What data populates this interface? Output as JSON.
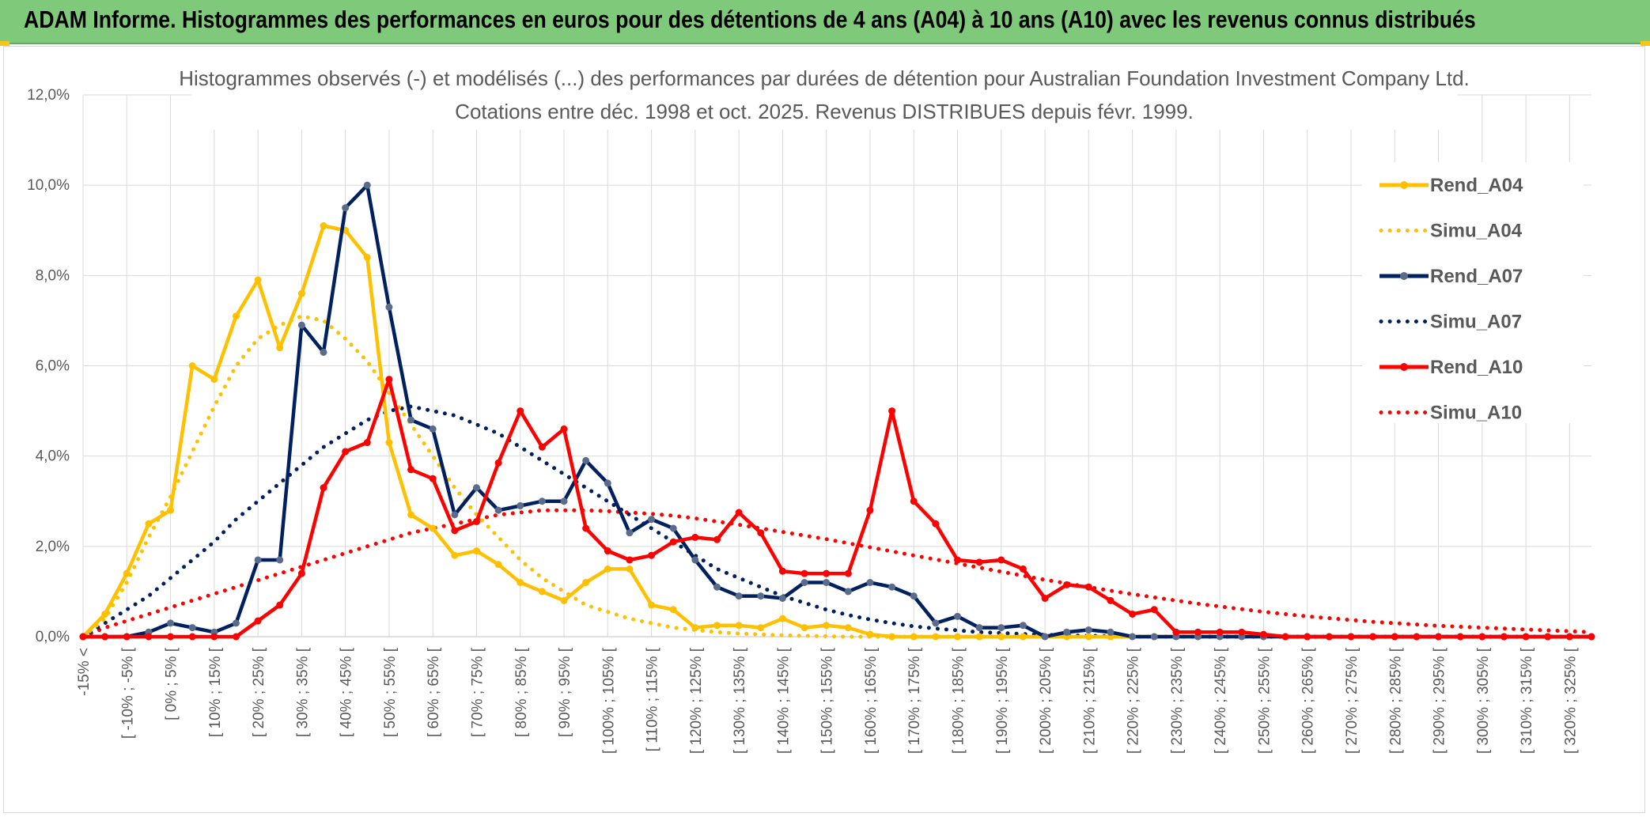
{
  "banner": {
    "title": "ADAM Informe. Histogrammes des performances en euros pour des détentions de 4 ans (A04) à 10 ans (A10) avec les revenus connus distribués"
  },
  "colors": {
    "banner_bg": "#7fc97a",
    "A04": "#ffc000",
    "A07": "#002060",
    "A10": "#ff0000",
    "A07_marker": "#5b6b8c",
    "grid": "#d9d9d9",
    "text": "#595959"
  },
  "chart_data": {
    "type": "line",
    "title_line1": "Histogrammes observés (-) et modélisés (...) des performances par durées de détention pour Australian Foundation Investment Company Ltd.",
    "title_line2": "Cotations entre déc. 1998 et oct. 2025. Revenus DISTRIBUES depuis févr. 1999.",
    "ylim": [
      0,
      0.12
    ],
    "yticks": [
      "0,0%",
      "2,0%",
      "4,0%",
      "6,0%",
      "8,0%",
      "10,0%",
      "12,0%"
    ],
    "grid": true,
    "legend_position": "right",
    "legend": [
      "Rend_A04",
      "Simu_A04",
      "Rend_A07",
      "Simu_A07",
      "Rend_A10",
      "Simu_A10"
    ],
    "x_labels": [
      "-15% <",
      "[ -10% ; -5% [",
      "[ 0% ; 5% [",
      "[ 10% ; 15% [",
      "[ 20% ; 25% [",
      "[ 30% ; 35% [",
      "[ 40% ; 45% [",
      "[ 50% ; 55% [",
      "[ 60% ; 65% [",
      "[ 70% ; 75% [",
      "[ 80% ; 85% [",
      "[ 90% ; 95% [",
      "[ 100% ; 105% [",
      "[ 110% ; 115% [",
      "[ 120% ; 125% [",
      "[ 130% ; 135% [",
      "[ 140% ; 145% [",
      "[ 150% ; 155% [",
      "[ 160% ; 165% [",
      "[ 170% ; 175% [",
      "[ 180% ; 185% [",
      "[ 190% ; 195% [",
      "[ 200% ; 205% [",
      "[ 210% ; 215% [",
      "[ 220% ; 225% [",
      "[ 230% ; 235% [",
      "[ 240% ; 245% [",
      "[ 250% ; 255% [",
      "[ 260% ; 265% [",
      "[ 270% ; 275% [",
      "[ 280% ; 285% [",
      "[ 290% ; 295% [",
      "[ 300% ; 305% [",
      "[ 310% ; 315% [",
      "[ 320% ; 325% ["
    ],
    "series": [
      {
        "name": "Rend_A04",
        "style": "solid",
        "color": "#ffc000",
        "values": [
          0.0,
          0.005,
          0.014,
          0.025,
          0.028,
          0.06,
          0.057,
          0.071,
          0.079,
          0.064,
          0.076,
          0.091,
          0.09,
          0.084,
          0.043,
          0.027,
          0.024,
          0.018,
          0.019,
          0.016,
          0.012,
          0.01,
          0.008,
          0.012,
          0.015,
          0.015,
          0.007,
          0.006,
          0.002,
          0.0025,
          0.0025,
          0.002,
          0.004,
          0.002,
          0.0025,
          0.002,
          0.0005,
          0.0,
          0.0,
          0.0,
          0.0,
          0.0,
          0.0,
          0.0,
          0.0,
          0.0,
          0.0,
          0.0,
          0.0,
          0.0,
          0.0,
          0.0
        ]
      },
      {
        "name": "Simu_A04",
        "style": "dotted",
        "color": "#ffc000",
        "values": [
          0.0,
          0.004,
          0.012,
          0.022,
          0.031,
          0.041,
          0.051,
          0.06,
          0.066,
          0.069,
          0.071,
          0.07,
          0.066,
          0.061,
          0.054,
          0.047,
          0.04,
          0.033,
          0.027,
          0.022,
          0.017,
          0.013,
          0.01,
          0.007,
          0.0055,
          0.004,
          0.003,
          0.002,
          0.0015,
          0.001,
          0.0007,
          0.0005,
          0.0003,
          0.0002,
          0.0001,
          0.0,
          0.0,
          0.0,
          0.0,
          0.0,
          0.0,
          0.0,
          0.0,
          0.0,
          0.0,
          0.0,
          0.0,
          0.0,
          0.0,
          0.0,
          0.0,
          0.0,
          0.0,
          0.0,
          0.0,
          0.0,
          0.0,
          0.0,
          0.0,
          0.0,
          0.0
        ]
      },
      {
        "name": "Rend_A07",
        "style": "solid",
        "color": "#002060",
        "values": [
          0.0,
          0.0,
          0.0,
          0.001,
          0.003,
          0.002,
          0.001,
          0.003,
          0.017,
          0.017,
          0.069,
          0.063,
          0.095,
          0.1,
          0.073,
          0.048,
          0.046,
          0.027,
          0.033,
          0.028,
          0.029,
          0.03,
          0.03,
          0.039,
          0.034,
          0.023,
          0.026,
          0.024,
          0.017,
          0.011,
          0.009,
          0.009,
          0.0085,
          0.012,
          0.012,
          0.01,
          0.012,
          0.011,
          0.009,
          0.003,
          0.0045,
          0.002,
          0.002,
          0.0025,
          0.0,
          0.001,
          0.0015,
          0.001,
          0.0,
          0.0,
          0.0,
          0.0,
          0.0,
          0.0,
          0.0,
          0.0,
          0.0,
          0.0,
          0.0,
          0.0,
          0.0,
          0.0,
          0.0,
          0.0,
          0.0,
          0.0,
          0.0,
          0.0,
          0.0,
          0.0
        ]
      },
      {
        "name": "Simu_A07",
        "style": "dotted",
        "color": "#002060",
        "values": [
          0.0,
          0.003,
          0.006,
          0.009,
          0.013,
          0.017,
          0.021,
          0.026,
          0.03,
          0.034,
          0.038,
          0.042,
          0.045,
          0.048,
          0.05,
          0.051,
          0.05,
          0.049,
          0.047,
          0.045,
          0.042,
          0.039,
          0.036,
          0.033,
          0.03,
          0.027,
          0.024,
          0.021,
          0.018,
          0.015,
          0.013,
          0.011,
          0.009,
          0.0075,
          0.006,
          0.0048,
          0.0038,
          0.003,
          0.0023,
          0.0018,
          0.0014,
          0.001,
          0.0008,
          0.0006,
          0.0004,
          0.0003,
          0.0002,
          0.0001,
          0.0,
          0.0,
          0.0,
          0.0,
          0.0,
          0.0,
          0.0,
          0.0,
          0.0,
          0.0,
          0.0,
          0.0,
          0.0,
          0.0,
          0.0,
          0.0,
          0.0,
          0.0,
          0.0,
          0.0,
          0.0,
          0.0
        ]
      },
      {
        "name": "Rend_A10",
        "style": "solid",
        "color": "#ff0000",
        "values": [
          0.0,
          0.0,
          0.0,
          0.0,
          0.0,
          0.0,
          0.0,
          0.0,
          0.0035,
          0.007,
          0.014,
          0.033,
          0.041,
          0.043,
          0.057,
          0.037,
          0.035,
          0.0235,
          0.0255,
          0.0385,
          0.05,
          0.042,
          0.046,
          0.024,
          0.019,
          0.017,
          0.018,
          0.021,
          0.022,
          0.0215,
          0.0275,
          0.023,
          0.0145,
          0.014,
          0.014,
          0.014,
          0.028,
          0.05,
          0.03,
          0.025,
          0.017,
          0.0165,
          0.017,
          0.015,
          0.0085,
          0.0115,
          0.011,
          0.008,
          0.005,
          0.006,
          0.001,
          0.001,
          0.001,
          0.001,
          0.0005,
          0.0,
          0.0,
          0.0,
          0.0,
          0.0,
          0.0,
          0.0,
          0.0,
          0.0,
          0.0,
          0.0,
          0.0,
          0.0,
          0.0,
          0.0
        ]
      },
      {
        "name": "Simu_A10",
        "style": "dotted",
        "color": "#ff0000",
        "values": [
          0.0,
          0.002,
          0.0035,
          0.005,
          0.0065,
          0.008,
          0.0095,
          0.011,
          0.0125,
          0.014,
          0.0155,
          0.017,
          0.0185,
          0.02,
          0.0215,
          0.023,
          0.024,
          0.025,
          0.026,
          0.027,
          0.0275,
          0.028,
          0.028,
          0.028,
          0.0278,
          0.0275,
          0.0272,
          0.0268,
          0.0262,
          0.0255,
          0.0248,
          0.024,
          0.0232,
          0.0224,
          0.0216,
          0.0207,
          0.0198,
          0.0189,
          0.018,
          0.0171,
          0.0162,
          0.0153,
          0.0144,
          0.0135,
          0.0126,
          0.0118,
          0.011,
          0.0102,
          0.0094,
          0.0087,
          0.008,
          0.0073,
          0.0067,
          0.0061,
          0.0055,
          0.005,
          0.0045,
          0.0041,
          0.0037,
          0.0033,
          0.003,
          0.0027,
          0.0024,
          0.0022,
          0.002,
          0.0018,
          0.0016,
          0.0014,
          0.0012,
          0.001
        ]
      }
    ]
  }
}
